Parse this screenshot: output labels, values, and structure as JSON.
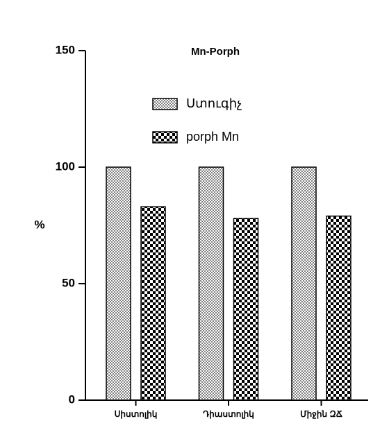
{
  "chart_data": {
    "type": "bar",
    "title": "Mn-Porph",
    "y_label": "%",
    "categories": [
      "Սիստոլիկ",
      "Դիաստոլիկ",
      "Միջին ԶՃ"
    ],
    "series": [
      {
        "name": "Ստուգիչ",
        "color": "#808080",
        "values": [
          100,
          100,
          100
        ]
      },
      {
        "name": "porph Mn",
        "color": "#000000",
        "values": [
          83,
          78,
          79
        ]
      }
    ],
    "ylim": [
      0,
      150
    ],
    "yticks": [
      0,
      50,
      100,
      150
    ],
    "grid": false
  }
}
